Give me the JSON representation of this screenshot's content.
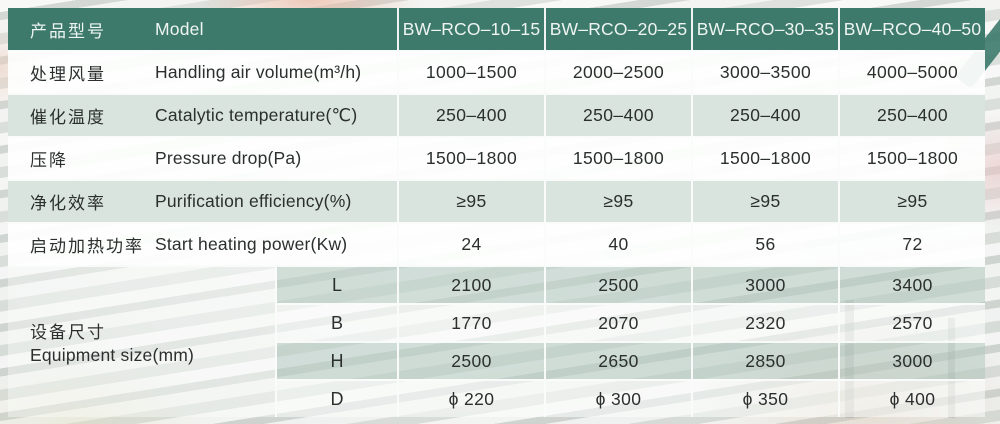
{
  "colors": {
    "header_bg": "#3e7a6c",
    "header_text": "#eef5f1",
    "row_tint": "#d9e4de",
    "text": "#2b2f2e",
    "sep": "rgba(250,252,251,0.95)"
  },
  "table": {
    "header": {
      "label_zh": "产品型号",
      "label_en": "Model",
      "models": [
        "BW–RCO–10–15",
        "BW–RCO–20–25",
        "BW–RCO–30–35",
        "BW–RCO–40–50"
      ]
    },
    "rows": [
      {
        "zh": "处理风量",
        "en": "Handling air volume(m³/h)",
        "values": [
          "1000–1500",
          "2000–2500",
          "3000–3500",
          "4000–5000"
        ]
      },
      {
        "zh": "催化温度",
        "en": "Catalytic temperature(℃)",
        "values": [
          "250–400",
          "250–400",
          "250–400",
          "250–400"
        ]
      },
      {
        "zh": "压降",
        "en": "Pressure drop(Pa)",
        "values": [
          "1500–1800",
          "1500–1800",
          "1500–1800",
          "1500–1800"
        ]
      },
      {
        "zh": "净化效率",
        "en": "Purification efficiency(%)",
        "values": [
          "≥95",
          "≥95",
          "≥95",
          "≥95"
        ]
      },
      {
        "zh": "启动加热功率",
        "en": "Start heating power(Kw)",
        "values": [
          "24",
          "40",
          "56",
          "72"
        ]
      }
    ],
    "equipment_size": {
      "zh": "设备尺寸",
      "en": "Equipment size(mm)",
      "dims": [
        {
          "label": "L",
          "values": [
            "2100",
            "2500",
            "3000",
            "3400"
          ]
        },
        {
          "label": "B",
          "values": [
            "1770",
            "2070",
            "2320",
            "2570"
          ]
        },
        {
          "label": "H",
          "values": [
            "2500",
            "2650",
            "2850",
            "3000"
          ]
        },
        {
          "label": "D",
          "values": [
            "ϕ 220",
            "ϕ 300",
            "ϕ 350",
            "ϕ 400"
          ]
        }
      ]
    }
  }
}
